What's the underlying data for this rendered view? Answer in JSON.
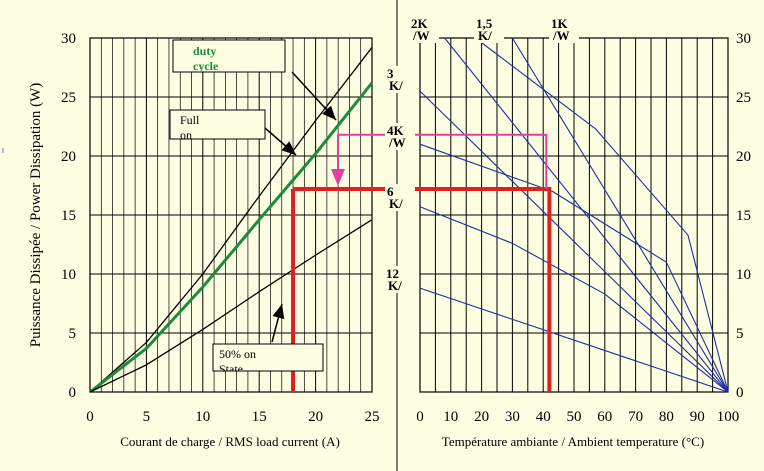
{
  "chart_data": [
    {
      "type": "line",
      "xlabel": "Courant de charge / RMS load current (A)",
      "ylabel": "Puissance Dissipée / Power Dissipation (W)",
      "xlim": [
        0,
        25
      ],
      "ylim": [
        0,
        30
      ],
      "xticks": [
        "0",
        "5",
        "10",
        "15",
        "20",
        "25"
      ],
      "yticks": [
        "0",
        "5",
        "10",
        "15",
        "20",
        "25",
        "30"
      ],
      "grid": true,
      "series": [
        {
          "name": "Full on",
          "color": "#000000",
          "x": [
            0,
            5,
            10,
            15,
            20,
            25
          ],
          "y": [
            0,
            4.2,
            10.0,
            16.6,
            23.0,
            29.2
          ]
        },
        {
          "name": "duty cycle",
          "color": "#1e8a3a",
          "x": [
            0,
            5,
            10,
            15,
            20,
            25
          ],
          "y": [
            0,
            3.7,
            8.9,
            14.6,
            20.2,
            26.2
          ]
        },
        {
          "name": "50% on State",
          "color": "#000000",
          "x": [
            0,
            5,
            10,
            15,
            20,
            25
          ],
          "y": [
            0,
            2.3,
            5.3,
            8.5,
            11.6,
            14.6
          ]
        }
      ],
      "annotations": [
        {
          "text_lines": [
            "duty",
            "cycle"
          ],
          "target_series": "duty cycle"
        },
        {
          "text_lines": [
            "Full",
            "on"
          ],
          "target_series": "Full on"
        },
        {
          "text_lines": [
            "50% on",
            "State"
          ],
          "target_series": "50% on State"
        }
      ],
      "guide_lines": [
        {
          "color": "#e02020",
          "points": [
            [
              18,
              0
            ],
            [
              18,
              17.2
            ]
          ]
        }
      ]
    },
    {
      "type": "line",
      "xlabel": "Température ambiante / Ambient temperature (°C)",
      "xlim": [
        0,
        100
      ],
      "ylim": [
        0,
        30
      ],
      "xticks": [
        "0",
        "10",
        "20",
        "30",
        "40",
        "50",
        "60",
        "70",
        "80",
        "90",
        "100"
      ],
      "yticks": [
        "0",
        "5",
        "10",
        "15",
        "20",
        "25",
        "30"
      ],
      "grid": true,
      "series_color": "#1f2fa0",
      "series": [
        {
          "name": "2K",
          "label_text": "2K",
          "label_sub": "/W",
          "x": [
            8,
            100
          ],
          "y": [
            30,
            0
          ]
        },
        {
          "name": "1,5",
          "label_text": "1,5",
          "label_sub": "K/",
          "x": [
            18,
            57,
            87,
            100
          ],
          "y": [
            30,
            22.3,
            13.3,
            0
          ]
        },
        {
          "name": "1K",
          "label_text": "1K",
          "label_sub": "/W",
          "x": [
            30,
            100
          ],
          "y": [
            30,
            0
          ]
        },
        {
          "name": "3",
          "label_text": "3",
          "label_sub": "K/",
          "x": [
            0,
            100
          ],
          "y": [
            25.5,
            0
          ]
        },
        {
          "name": "4K",
          "label_text": "4K",
          "label_sub": "/W",
          "x": [
            0,
            43,
            80,
            100
          ],
          "y": [
            21,
            17,
            11,
            0
          ]
        },
        {
          "name": "6",
          "label_text": "6",
          "label_sub": "K/",
          "x": [
            0,
            30,
            60,
            100
          ],
          "y": [
            15.7,
            12.6,
            8.3,
            0
          ]
        },
        {
          "name": "12",
          "label_text": "12",
          "label_sub": "K/",
          "x": [
            0,
            100
          ],
          "y": [
            8.8,
            0
          ]
        }
      ],
      "guide_lines": [
        {
          "color": "#e02020",
          "points": [
            [
              0,
              17.2
            ],
            [
              42,
              17.2
            ],
            [
              42,
              0
            ]
          ]
        },
        {
          "color": "#e040a0",
          "points": [
            [
              0,
              21.8
            ],
            [
              41,
              21.8
            ],
            [
              41,
              17.2
            ]
          ]
        }
      ]
    }
  ]
}
